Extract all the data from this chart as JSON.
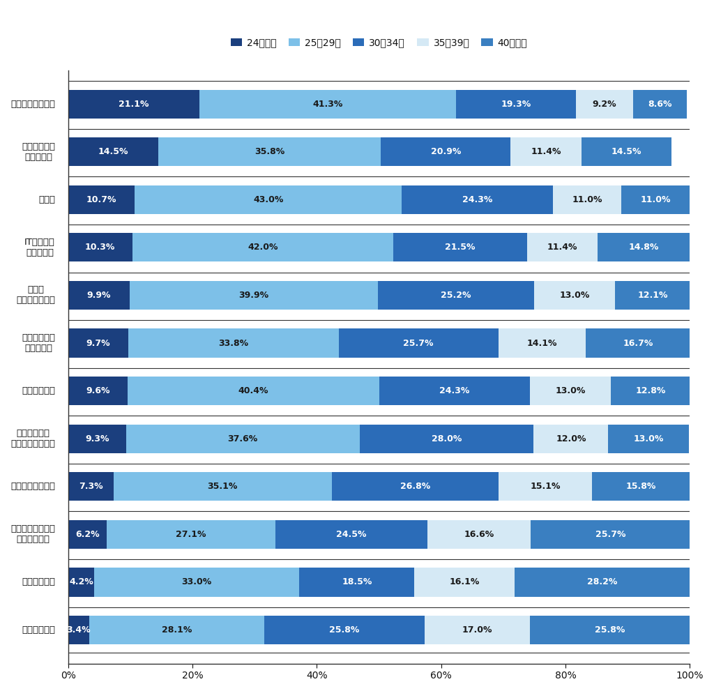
{
  "categories": [
    "販売／サービス系",
    "建築／土木系\nエンジニア",
    "営業系",
    "IT／通信系\nエンジニア",
    "事務／\nアシスタント系",
    "モノづくり系\nエンジニア",
    "医療系専門職",
    "素材／科学／\n食品系エンジニア",
    "クリエイティブ系",
    "コンサルタント／\n不動産専門職",
    "金融系専門職",
    "企画／管理系"
  ],
  "data": [
    [
      21.1,
      41.3,
      19.3,
      9.2,
      8.6
    ],
    [
      14.5,
      35.8,
      20.9,
      11.4,
      14.5
    ],
    [
      10.7,
      43.0,
      24.3,
      11.0,
      11.0
    ],
    [
      10.3,
      42.0,
      21.5,
      11.4,
      14.8
    ],
    [
      9.9,
      39.9,
      25.2,
      13.0,
      12.1
    ],
    [
      9.7,
      33.8,
      25.7,
      14.1,
      16.7
    ],
    [
      9.6,
      40.4,
      24.3,
      13.0,
      12.8
    ],
    [
      9.3,
      37.6,
      28.0,
      12.0,
      13.0
    ],
    [
      7.3,
      35.1,
      26.8,
      15.1,
      15.8
    ],
    [
      6.2,
      27.1,
      24.5,
      16.6,
      25.7
    ],
    [
      4.2,
      33.0,
      18.5,
      16.1,
      28.2
    ],
    [
      3.4,
      28.1,
      25.8,
      17.0,
      25.8
    ]
  ],
  "bar_colors": [
    "#1b3f7e",
    "#7dc0e8",
    "#2b6cb8",
    "#d5e9f5",
    "#3a7fc1"
  ],
  "legend_labels": [
    "24歳以下",
    "25～29歳",
    "30～34歳",
    "35～39歳",
    "40歳以上"
  ],
  "legend_colors": [
    "#1b3f7e",
    "#7dc0e8",
    "#2b6cb8",
    "#d5e9f5",
    "#3a7fc1"
  ],
  "background_color": "#ffffff",
  "bar_height": 0.6,
  "figsize": [
    10.24,
    9.91
  ],
  "text_colors": [
    "#ffffff",
    "#1a1a1a",
    "#ffffff",
    "#1a1a1a",
    "#ffffff"
  ]
}
